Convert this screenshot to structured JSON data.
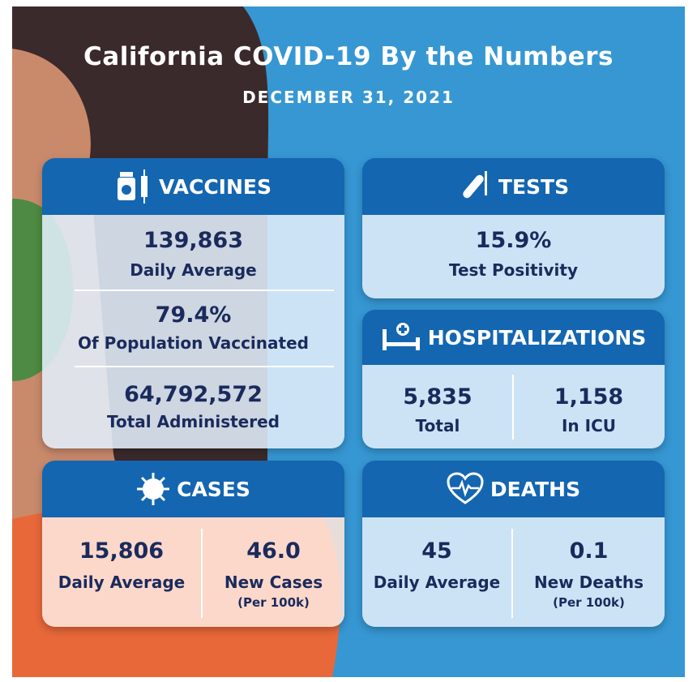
{
  "header": {
    "title": "California COVID-19 By the Numbers",
    "subtitle": "DECEMBER 31, 2021"
  },
  "panels": {
    "vaccines": {
      "title": "VACCINES",
      "items": [
        {
          "value": "139,863",
          "label": "Daily Average"
        },
        {
          "value": "79.4%",
          "label": "Of Population Vaccinated"
        },
        {
          "value": "64,792,572",
          "label": "Total Administered"
        }
      ]
    },
    "tests": {
      "title": "TESTS",
      "items": [
        {
          "value": "15.9%",
          "label": "Test Positivity"
        }
      ]
    },
    "hospitalizations": {
      "title": "HOSPITALIZATIONS",
      "items": [
        {
          "value": "5,835",
          "label": "Total"
        },
        {
          "value": "1,158",
          "label": "In ICU"
        }
      ]
    },
    "cases": {
      "title": "CASES",
      "items": [
        {
          "value": "15,806",
          "label": "Daily Average"
        },
        {
          "value": "46.0",
          "label": "New Cases",
          "note": "(Per 100k)"
        }
      ]
    },
    "deaths": {
      "title": "DEATHS",
      "items": [
        {
          "value": "45",
          "label": "Daily Average"
        },
        {
          "value": "0.1",
          "label": "New Deaths",
          "note": "(Per 100k)"
        }
      ]
    }
  }
}
